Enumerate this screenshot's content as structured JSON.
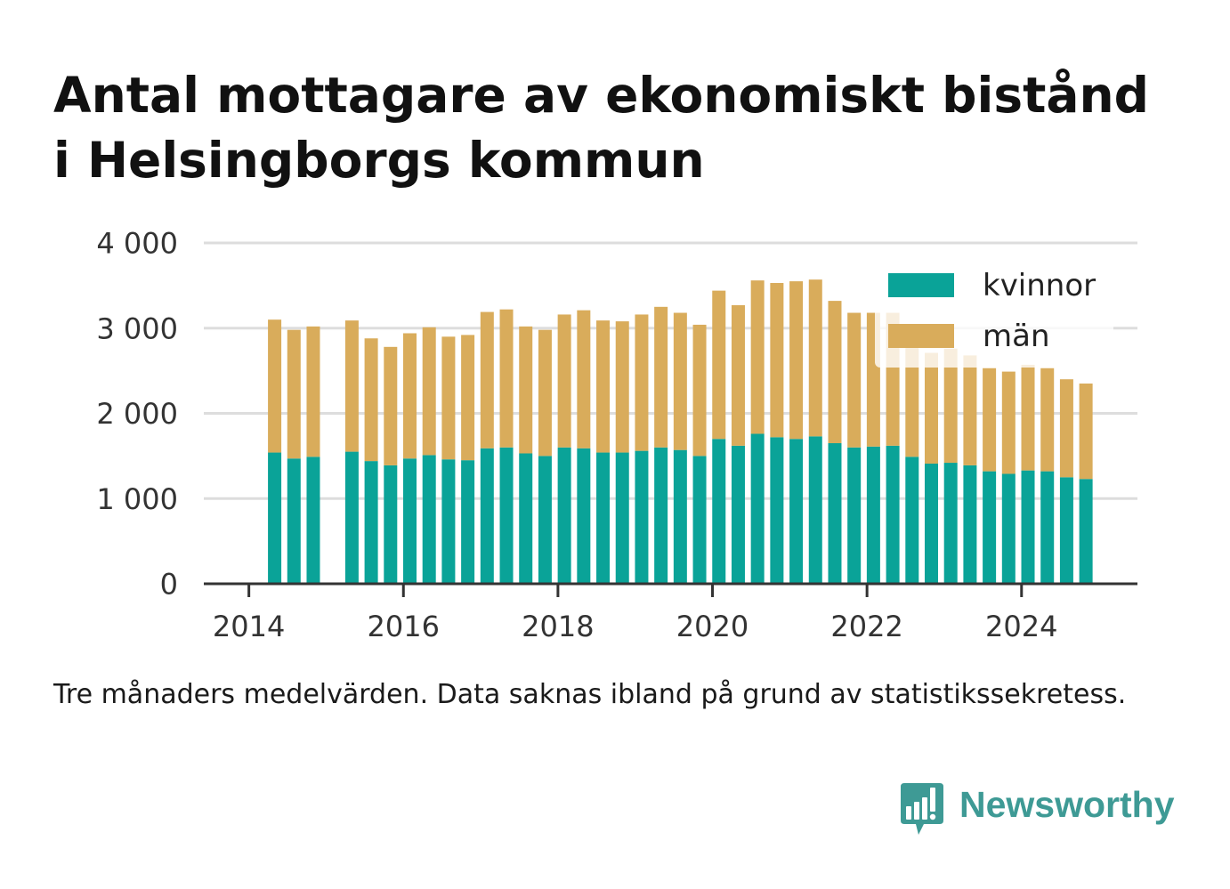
{
  "caption": "Tre månaders medelvärden. Data saknas ibland på grund av statistikssekretess.",
  "logo": {
    "text": "Newsworthy",
    "icon": "speech-bubble-bar-chart-icon",
    "color": "#3e9a95"
  },
  "colors": {
    "grid": "#dddddd",
    "axis": "#333333"
  },
  "chart_data": {
    "type": "bar",
    "stacked": true,
    "title": "Antal mottagare av ekonomiskt bistånd i Helsingborgs kommun",
    "x": [
      "2014-05",
      "2014-08",
      "2014-11",
      "2015-05",
      "2015-08",
      "2015-11",
      "2016-02",
      "2016-05",
      "2016-08",
      "2016-11",
      "2017-02",
      "2017-05",
      "2017-08",
      "2017-11",
      "2018-02",
      "2018-05",
      "2018-08",
      "2018-11",
      "2019-02",
      "2019-05",
      "2019-08",
      "2019-11",
      "2020-02",
      "2020-05",
      "2020-08",
      "2020-11",
      "2021-02",
      "2021-05",
      "2021-08",
      "2021-11",
      "2022-02",
      "2022-05",
      "2022-08",
      "2022-11",
      "2023-02",
      "2023-05",
      "2023-08",
      "2023-11",
      "2024-02",
      "2024-05",
      "2024-08",
      "2024-11"
    ],
    "series": [
      {
        "name": "kvinnor",
        "color": "#0aa398",
        "values": [
          1540,
          1470,
          1490,
          1550,
          1440,
          1390,
          1470,
          1510,
          1460,
          1450,
          1590,
          1600,
          1530,
          1500,
          1600,
          1590,
          1540,
          1540,
          1560,
          1600,
          1570,
          1500,
          1700,
          1620,
          1760,
          1720,
          1700,
          1730,
          1650,
          1600,
          1610,
          1620,
          1490,
          1410,
          1420,
          1390,
          1320,
          1290,
          1330,
          1320,
          1250,
          1230
        ]
      },
      {
        "name": "män",
        "color": "#d9ac5b",
        "values": [
          1560,
          1510,
          1530,
          1540,
          1440,
          1390,
          1470,
          1500,
          1440,
          1470,
          1600,
          1620,
          1490,
          1480,
          1560,
          1620,
          1550,
          1540,
          1600,
          1650,
          1610,
          1540,
          1740,
          1650,
          1800,
          1810,
          1850,
          1840,
          1670,
          1580,
          1570,
          1560,
          1410,
          1300,
          1340,
          1290,
          1210,
          1200,
          1240,
          1210,
          1150,
          1120
        ]
      }
    ],
    "xlim": [
      "2013-06",
      "2025-07"
    ],
    "ylim": [
      0,
      4000
    ],
    "xticks": [
      2014,
      2016,
      2018,
      2020,
      2022,
      2024
    ],
    "xtick_labels": [
      "2014",
      "2016",
      "2018",
      "2020",
      "2022",
      "2024"
    ],
    "yticks": [
      0,
      1000,
      2000,
      3000,
      4000
    ],
    "ytick_labels": [
      "0",
      "1 000",
      "2 000",
      "3 000",
      "4 000"
    ],
    "grid": "horizontal",
    "legend": "top-right"
  }
}
